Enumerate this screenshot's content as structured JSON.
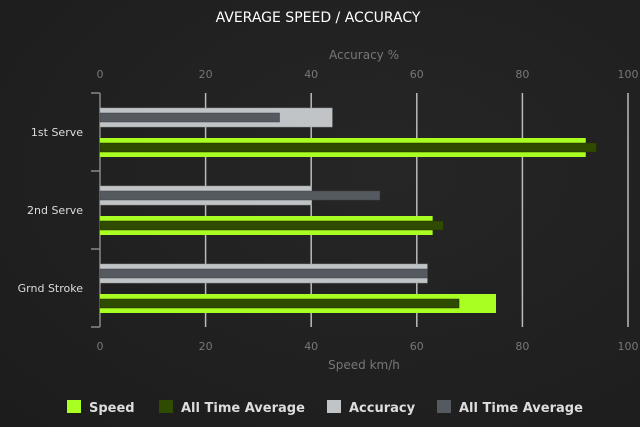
{
  "chart_data": {
    "type": "bar",
    "orientation": "horizontal",
    "title": "AVERAGE SPEED / ACCURACY",
    "top_axis": {
      "label": "Accuracy %",
      "range": [
        0,
        100
      ],
      "ticks": [
        "0",
        "20",
        "40",
        "60",
        "80",
        "100"
      ]
    },
    "bottom_axis": {
      "label": "Speed km/h",
      "range": [
        0,
        100
      ],
      "ticks": [
        "0",
        "20",
        "40",
        "60",
        "80",
        "100"
      ]
    },
    "categories": [
      "1st Serve",
      "2nd Serve",
      "Grnd Stroke"
    ],
    "series": [
      {
        "name": "Speed",
        "axis": "bottom",
        "color": "#aaff22",
        "values": [
          92,
          63,
          75
        ]
      },
      {
        "name": "All Time Average",
        "axis": "bottom",
        "color": "#2f4b00",
        "values": [
          94,
          65,
          68
        ]
      },
      {
        "name": "Accuracy",
        "axis": "top",
        "color": "#c0c4c6",
        "values": [
          44,
          40,
          62
        ]
      },
      {
        "name": "All Time Average",
        "axis": "top",
        "color": "#555a60",
        "values": [
          34,
          53,
          62
        ]
      }
    ],
    "grid": true,
    "legend": "bottom"
  }
}
